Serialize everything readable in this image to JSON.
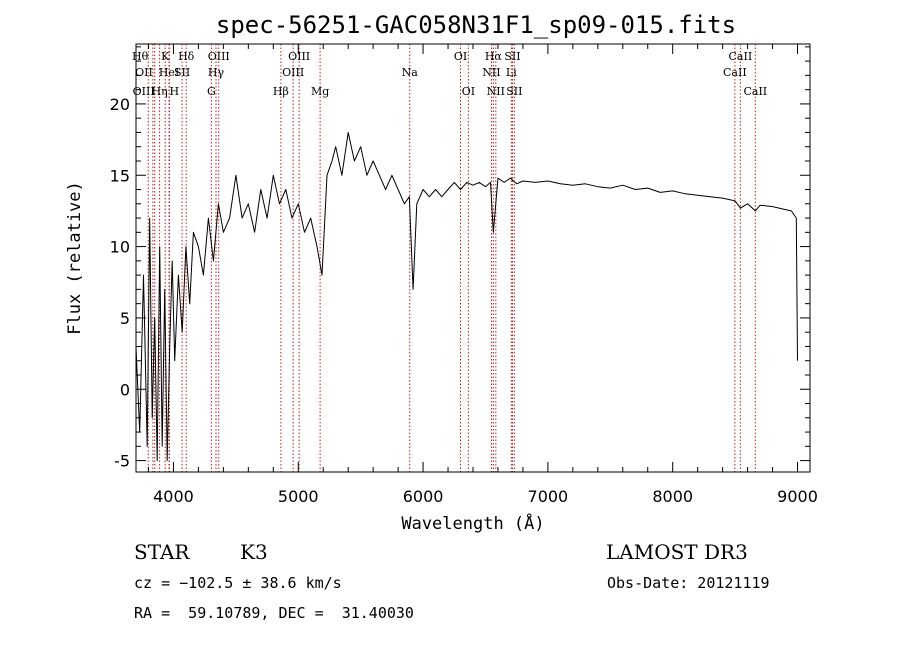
{
  "chart_data": {
    "type": "line",
    "title": "spec-56251-GAC058N31F1_sp09-015.fits",
    "xlabel": "Wavelength (Å)",
    "ylabel": "Flux (relative)",
    "xlim": [
      3700,
      9100
    ],
    "ylim": [
      -5.8,
      24.2
    ],
    "x_ticks": [
      4000,
      5000,
      6000,
      7000,
      8000,
      9000
    ],
    "y_ticks": [
      -5,
      0,
      5,
      10,
      15,
      20
    ],
    "series": [
      {
        "name": "flux",
        "color": "#000000",
        "x": [
          3700,
          3730,
          3760,
          3790,
          3810,
          3830,
          3850,
          3870,
          3890,
          3910,
          3930,
          3950,
          3970,
          3990,
          4010,
          4040,
          4070,
          4100,
          4130,
          4160,
          4200,
          4240,
          4280,
          4320,
          4360,
          4400,
          4450,
          4500,
          4550,
          4600,
          4650,
          4700,
          4750,
          4800,
          4850,
          4900,
          4950,
          5000,
          5050,
          5100,
          5150,
          5190,
          5230,
          5270,
          5300,
          5350,
          5400,
          5450,
          5500,
          5550,
          5600,
          5650,
          5700,
          5750,
          5800,
          5850,
          5890,
          5920,
          5950,
          6000,
          6050,
          6100,
          6150,
          6200,
          6250,
          6300,
          6350,
          6400,
          6450,
          6500,
          6540,
          6563,
          6600,
          6650,
          6700,
          6750,
          6800,
          6900,
          7000,
          7100,
          7200,
          7300,
          7400,
          7500,
          7600,
          7700,
          7800,
          7900,
          8000,
          8100,
          8200,
          8300,
          8400,
          8500,
          8542,
          8600,
          8662,
          8700,
          8800,
          8900,
          8950,
          8990,
          9000
        ],
        "values": [
          3,
          -3,
          8,
          -4,
          12,
          -2,
          5,
          -5,
          10,
          -4,
          7,
          -5,
          3,
          9,
          2,
          8,
          4,
          10,
          6,
          11,
          10,
          8,
          12,
          9,
          13,
          11,
          12,
          15,
          12,
          13,
          11,
          14,
          12,
          15,
          13,
          14,
          12,
          13,
          11,
          12,
          10,
          8,
          15,
          16,
          17,
          15,
          18,
          16,
          17,
          15,
          16,
          15,
          14,
          15,
          14,
          13,
          13.5,
          7,
          13,
          14,
          13.5,
          14,
          13.5,
          14,
          14.5,
          14,
          14.5,
          14.3,
          14.5,
          14.2,
          14.5,
          11,
          14.8,
          14.5,
          14.8,
          14.4,
          14.6,
          14.5,
          14.6,
          14.4,
          14.3,
          14.4,
          14.2,
          14.1,
          14.3,
          14,
          14.1,
          13.8,
          13.9,
          13.7,
          13.6,
          13.5,
          13.4,
          13.2,
          12.7,
          13.0,
          12.5,
          12.9,
          12.8,
          12.6,
          12.5,
          12.0,
          2
        ]
      }
    ],
    "lines": [
      {
        "x": 3798,
        "label": "Hθ",
        "row": 0,
        "anchor": "end"
      },
      {
        "x": 3835,
        "label": "OII",
        "row": 1,
        "anchor": "end"
      },
      {
        "x": 3850,
        "label": "OIII",
        "row": 2,
        "anchor": "end"
      },
      {
        "x": 3889,
        "label": "Hη",
        "row": 2,
        "anchor": "middle"
      },
      {
        "x": 3934,
        "label": "K",
        "row": 0,
        "anchor": "middle"
      },
      {
        "x": 3965,
        "label": "HeI",
        "row": 1,
        "anchor": "middle"
      },
      {
        "x": 3968,
        "label": "H",
        "row": 2,
        "anchor": "start"
      },
      {
        "x": 4069,
        "label": "SII",
        "row": 1,
        "anchor": "middle"
      },
      {
        "x": 4102,
        "label": "Hδ",
        "row": 0,
        "anchor": "middle"
      },
      {
        "x": 4304,
        "label": "G",
        "row": 2,
        "anchor": "middle"
      },
      {
        "x": 4341,
        "label": "Hγ",
        "row": 1,
        "anchor": "middle"
      },
      {
        "x": 4363,
        "label": "OIII",
        "row": 0,
        "anchor": "middle"
      },
      {
        "x": 4861,
        "label": "Hβ",
        "row": 2,
        "anchor": "middle"
      },
      {
        "x": 4959,
        "label": "OIII",
        "row": 1,
        "anchor": "middle"
      },
      {
        "x": 5007,
        "label": "OIII",
        "row": 0,
        "anchor": "middle"
      },
      {
        "x": 5175,
        "label": "Mg",
        "row": 2,
        "anchor": "middle"
      },
      {
        "x": 5893,
        "label": "Na",
        "row": 1,
        "anchor": "middle"
      },
      {
        "x": 6300,
        "label": "OI",
        "row": 0,
        "anchor": "middle"
      },
      {
        "x": 6363,
        "label": "OI",
        "row": 2,
        "anchor": "middle"
      },
      {
        "x": 6548,
        "label": "NII",
        "row": 1,
        "anchor": "middle"
      },
      {
        "x": 6563,
        "label": "Hα",
        "row": 0,
        "anchor": "middle"
      },
      {
        "x": 6583,
        "label": "NII",
        "row": 2,
        "anchor": "middle"
      },
      {
        "x": 6707,
        "label": "Li",
        "row": 1,
        "anchor": "middle"
      },
      {
        "x": 6716,
        "label": "SII",
        "row": 0,
        "anchor": "middle"
      },
      {
        "x": 6731,
        "label": "SII",
        "row": 2,
        "anchor": "middle"
      },
      {
        "x": 8498,
        "label": "CaII",
        "row": 1,
        "anchor": "middle"
      },
      {
        "x": 8542,
        "label": "CaII",
        "row": 0,
        "anchor": "middle"
      },
      {
        "x": 8662,
        "label": "CaII",
        "row": 2,
        "anchor": "middle"
      }
    ]
  },
  "info": {
    "class": "STAR",
    "subclass": "K3",
    "survey": "LAMOST DR3",
    "cz": "cz = −102.5 ± 38.6 km/s",
    "obs_date": "Obs-Date: 20121119",
    "radec": "RA =  59.10789, DEC =  31.40030"
  },
  "colors": {
    "line_marker": "#b22222",
    "spectrum": "#000000"
  }
}
